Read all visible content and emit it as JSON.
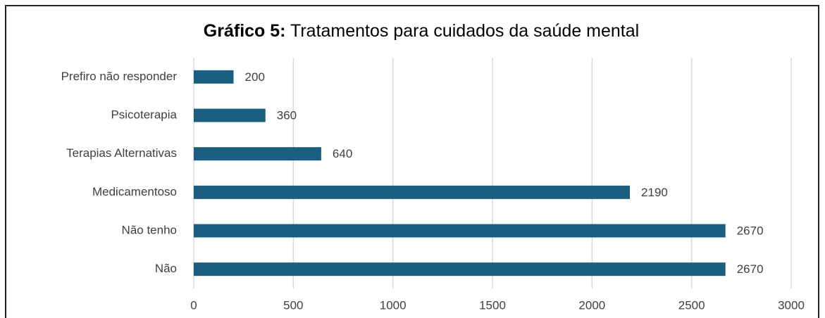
{
  "chart_data": {
    "type": "hbar",
    "title_label": "Gráfico 5:",
    "title": "Tratamentos para cuidados da saúde mental",
    "categories": [
      "Prefiro não responder",
      "Psicoterapia",
      "Terapias Alternativas",
      "Medicamentoso",
      "Não tenho",
      "Não"
    ],
    "values": [
      200,
      360,
      640,
      2190,
      2670,
      2670
    ],
    "color": "#1a5e80",
    "xlim": [
      0,
      3000
    ],
    "xticks": [
      0,
      500,
      1000,
      1500,
      2000,
      2500,
      3000
    ],
    "grid": true
  }
}
